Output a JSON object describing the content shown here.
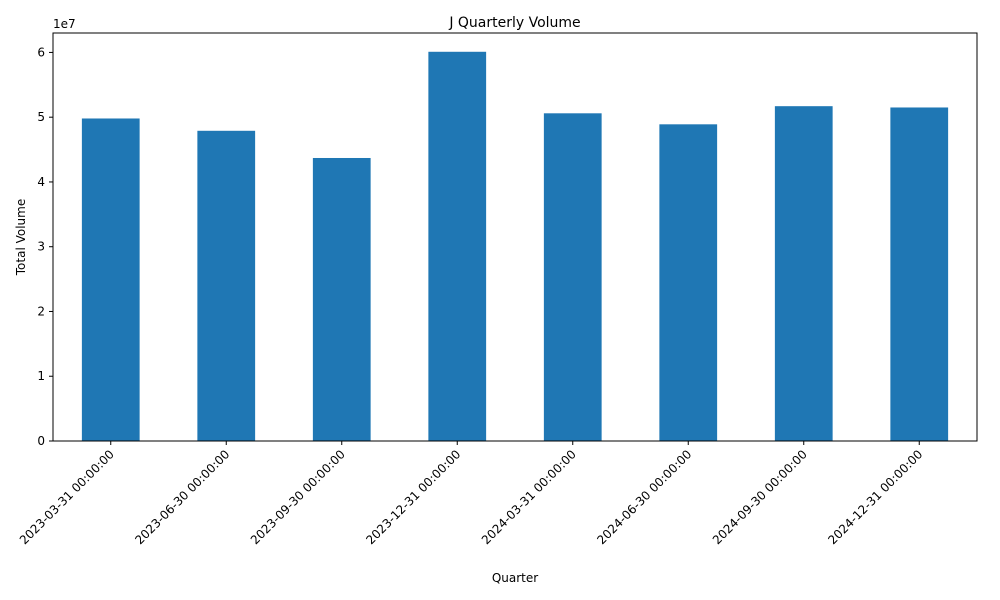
{
  "chart_data": {
    "type": "bar",
    "title": "J Quarterly Volume",
    "xlabel": "Quarter",
    "ylabel": "Total Volume",
    "y_offset_label": "1e7",
    "y_scale": 10000000,
    "ylim": [
      0,
      63000000
    ],
    "yticks": [
      0,
      10000000,
      20000000,
      30000000,
      40000000,
      50000000,
      60000000
    ],
    "ytick_labels": [
      "0",
      "1",
      "2",
      "3",
      "4",
      "5",
      "6"
    ],
    "categories": [
      "2023-03-31 00:00:00",
      "2023-06-30 00:00:00",
      "2023-09-30 00:00:00",
      "2023-12-31 00:00:00",
      "2024-03-31 00:00:00",
      "2024-06-30 00:00:00",
      "2024-09-30 00:00:00",
      "2024-12-31 00:00:00"
    ],
    "values": [
      49800000,
      47900000,
      43700000,
      60100000,
      50600000,
      48900000,
      51700000,
      51500000
    ],
    "bar_color": "#1f77b4",
    "grid": false,
    "legend": "none"
  }
}
